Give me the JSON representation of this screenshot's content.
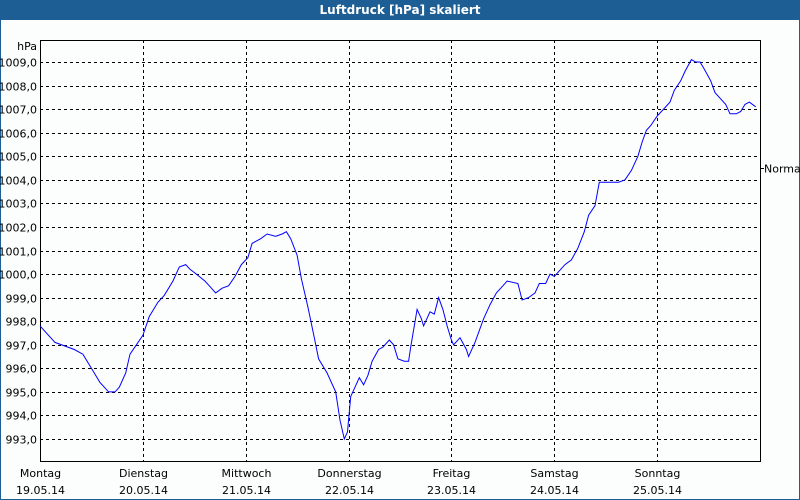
{
  "window": {
    "title": "Luftdruck [hPa] skaliert"
  },
  "chart_data": {
    "type": "line",
    "title": "Luftdruck [hPa] skaliert",
    "ylabel": "hPa",
    "ylim": [
      992.0,
      1010.0
    ],
    "yticks": [
      "993,0",
      "994,0",
      "995,0",
      "996,0",
      "997,0",
      "998,0",
      "999,0",
      "1000,0",
      "1001,0",
      "1002,0",
      "1003,0",
      "1004,0",
      "1005,0",
      "1006,0",
      "1007,0",
      "1008,0",
      "1009,0"
    ],
    "xlim": [
      "19.05.14 00:00",
      "26.05.14 00:00"
    ],
    "xticks": [
      {
        "day": "Montag",
        "date": "19.05.14"
      },
      {
        "day": "Dienstag",
        "date": "20.05.14"
      },
      {
        "day": "Mittwoch",
        "date": "21.05.14"
      },
      {
        "day": "Donnerstag",
        "date": "22.05.14"
      },
      {
        "day": "Freitag",
        "date": "23.05.14"
      },
      {
        "day": "Samstag",
        "date": "24.05.14"
      },
      {
        "day": "Sonntag",
        "date": "25.05.14"
      }
    ],
    "grid": true,
    "reference": {
      "label": "Normal",
      "value": 1004.5
    },
    "line_color": "#0000ff",
    "series": [
      {
        "points": [
          [
            "19.05.14 00:00",
            997.8
          ],
          [
            "19.05.14 03:30",
            997.1
          ],
          [
            "19.05.14 08:00",
            996.8
          ],
          [
            "19.05.14 10:00",
            996.6
          ],
          [
            "19.05.14 12:00",
            996.0
          ],
          [
            "19.05.14 14:00",
            995.4
          ],
          [
            "19.05.14 16:00",
            995.0
          ],
          [
            "19.05.14 17:30",
            995.0
          ],
          [
            "19.05.14 18:30",
            995.2
          ],
          [
            "19.05.14 20:00",
            995.8
          ],
          [
            "19.05.14 21:00",
            996.6
          ],
          [
            "19.05.14 22:30",
            997.0
          ],
          [
            "20.05.14 00:00",
            997.4
          ],
          [
            "20.05.14 01:30",
            998.2
          ],
          [
            "20.05.14 03:30",
            998.8
          ],
          [
            "20.05.14 05:00",
            999.1
          ],
          [
            "20.05.14 07:00",
            999.7
          ],
          [
            "20.05.14 08:30",
            1000.3
          ],
          [
            "20.05.14 10:00",
            1000.4
          ],
          [
            "20.05.14 11:00",
            1000.2
          ],
          [
            "20.05.14 12:30",
            1000.0
          ],
          [
            "20.05.14 14:30",
            999.7
          ],
          [
            "20.05.14 15:30",
            999.5
          ],
          [
            "20.05.14 17:00",
            999.2
          ],
          [
            "20.05.14 18:30",
            999.4
          ],
          [
            "20.05.14 20:00",
            999.5
          ],
          [
            "20.05.14 21:30",
            999.9
          ],
          [
            "20.05.14 23:00",
            1000.4
          ],
          [
            "21.05.14 00:30",
            1000.7
          ],
          [
            "21.05.14 01:30",
            1001.3
          ],
          [
            "21.05.14 03:30",
            1001.5
          ],
          [
            "21.05.14 05:00",
            1001.7
          ],
          [
            "21.05.14 07:00",
            1001.6
          ],
          [
            "21.05.14 08:30",
            1001.7
          ],
          [
            "21.05.14 09:30",
            1001.8
          ],
          [
            "21.05.14 10:30",
            1001.5
          ],
          [
            "21.05.14 12:00",
            1000.8
          ],
          [
            "21.05.14 13:00",
            999.8
          ],
          [
            "21.05.14 14:30",
            998.6
          ],
          [
            "21.05.14 16:00",
            997.3
          ],
          [
            "21.05.14 17:00",
            996.4
          ],
          [
            "21.05.14 19:00",
            995.8
          ],
          [
            "21.05.14 20:00",
            995.4
          ],
          [
            "21.05.14 21:00",
            995.0
          ],
          [
            "21.05.14 22:00",
            993.8
          ],
          [
            "21.05.14 23:00",
            993.0
          ],
          [
            "21.05.14 23:45",
            993.3
          ],
          [
            "22.05.14 00:30",
            994.8
          ],
          [
            "22.05.14 01:30",
            995.2
          ],
          [
            "22.05.14 02:30",
            995.6
          ],
          [
            "22.05.14 03:30",
            995.3
          ],
          [
            "22.05.14 04:30",
            995.7
          ],
          [
            "22.05.14 05:30",
            996.3
          ],
          [
            "22.05.14 07:00",
            996.8
          ],
          [
            "22.05.14 08:00",
            996.9
          ],
          [
            "22.05.14 09:30",
            997.2
          ],
          [
            "22.05.14 10:30",
            997.0
          ],
          [
            "22.05.14 11:30",
            996.4
          ],
          [
            "22.05.14 13:00",
            996.3
          ],
          [
            "22.05.14 14:00",
            996.3
          ],
          [
            "22.05.14 14:30",
            996.9
          ],
          [
            "22.05.14 16:00",
            998.5
          ],
          [
            "22.05.14 17:00",
            998.1
          ],
          [
            "22.05.14 17:30",
            997.8
          ],
          [
            "22.05.14 19:00",
            998.4
          ],
          [
            "22.05.14 20:00",
            998.3
          ],
          [
            "22.05.14 21:00",
            999.0
          ],
          [
            "22.05.14 22:00",
            998.5
          ],
          [
            "22.05.14 23:00",
            997.8
          ],
          [
            "23.05.14 00:00",
            997.2
          ],
          [
            "23.05.14 00:30",
            997.0
          ],
          [
            "23.05.14 02:00",
            997.3
          ],
          [
            "23.05.14 03:30",
            996.8
          ],
          [
            "23.05.14 04:00",
            996.5
          ],
          [
            "23.05.14 05:30",
            997.1
          ],
          [
            "23.05.14 06:30",
            997.6
          ],
          [
            "23.05.14 07:30",
            998.1
          ],
          [
            "23.05.14 09:00",
            998.7
          ],
          [
            "23.05.14 10:30",
            999.2
          ],
          [
            "23.05.14 12:00",
            999.5
          ],
          [
            "23.05.14 13:00",
            999.7
          ],
          [
            "23.05.14 15:30",
            999.6
          ],
          [
            "23.05.14 16:30",
            998.9
          ],
          [
            "23.05.14 18:00",
            999.0
          ],
          [
            "23.05.14 19:30",
            999.2
          ],
          [
            "23.05.14 20:30",
            999.6
          ],
          [
            "23.05.14 22:00",
            999.6
          ],
          [
            "23.05.14 23:00",
            1000.0
          ],
          [
            "24.05.14 00:00",
            999.9
          ],
          [
            "24.05.14 01:00",
            1000.1
          ],
          [
            "24.05.14 02:30",
            1000.4
          ],
          [
            "24.05.14 04:00",
            1000.6
          ],
          [
            "24.05.14 05:30",
            1001.1
          ],
          [
            "24.05.14 07:00",
            1001.8
          ],
          [
            "24.05.14 08:00",
            1002.5
          ],
          [
            "24.05.14 09:30",
            1002.9
          ],
          [
            "24.05.14 10:30",
            1003.9
          ],
          [
            "24.05.14 13:00",
            1003.9
          ],
          [
            "24.05.14 15:00",
            1003.9
          ],
          [
            "24.05.14 16:30",
            1004.0
          ],
          [
            "24.05.14 18:00",
            1004.4
          ],
          [
            "24.05.14 19:30",
            1005.0
          ],
          [
            "24.05.14 20:30",
            1005.6
          ],
          [
            "24.05.14 21:30",
            1006.1
          ],
          [
            "24.05.14 22:30",
            1006.3
          ],
          [
            "25.05.14 00:00",
            1006.7
          ],
          [
            "25.05.14 01:30",
            1007.0
          ],
          [
            "25.05.14 03:00",
            1007.3
          ],
          [
            "25.05.14 04:00",
            1007.8
          ],
          [
            "25.05.14 05:30",
            1008.2
          ],
          [
            "25.05.14 06:30",
            1008.6
          ],
          [
            "25.05.14 08:00",
            1009.1
          ],
          [
            "25.05.14 09:00",
            1009.0
          ],
          [
            "25.05.14 10:00",
            1009.0
          ],
          [
            "25.05.14 11:00",
            1008.7
          ],
          [
            "25.05.14 12:30",
            1008.2
          ],
          [
            "25.05.14 13:30",
            1007.7
          ],
          [
            "25.05.14 15:00",
            1007.4
          ],
          [
            "25.05.14 16:00",
            1007.2
          ],
          [
            "25.05.14 17:00",
            1006.8
          ],
          [
            "25.05.14 18:30",
            1006.8
          ],
          [
            "25.05.14 19:30",
            1006.9
          ],
          [
            "25.05.14 20:30",
            1007.2
          ],
          [
            "25.05.14 21:30",
            1007.3
          ],
          [
            "25.05.14 23:00",
            1007.1
          ]
        ]
      }
    ]
  }
}
